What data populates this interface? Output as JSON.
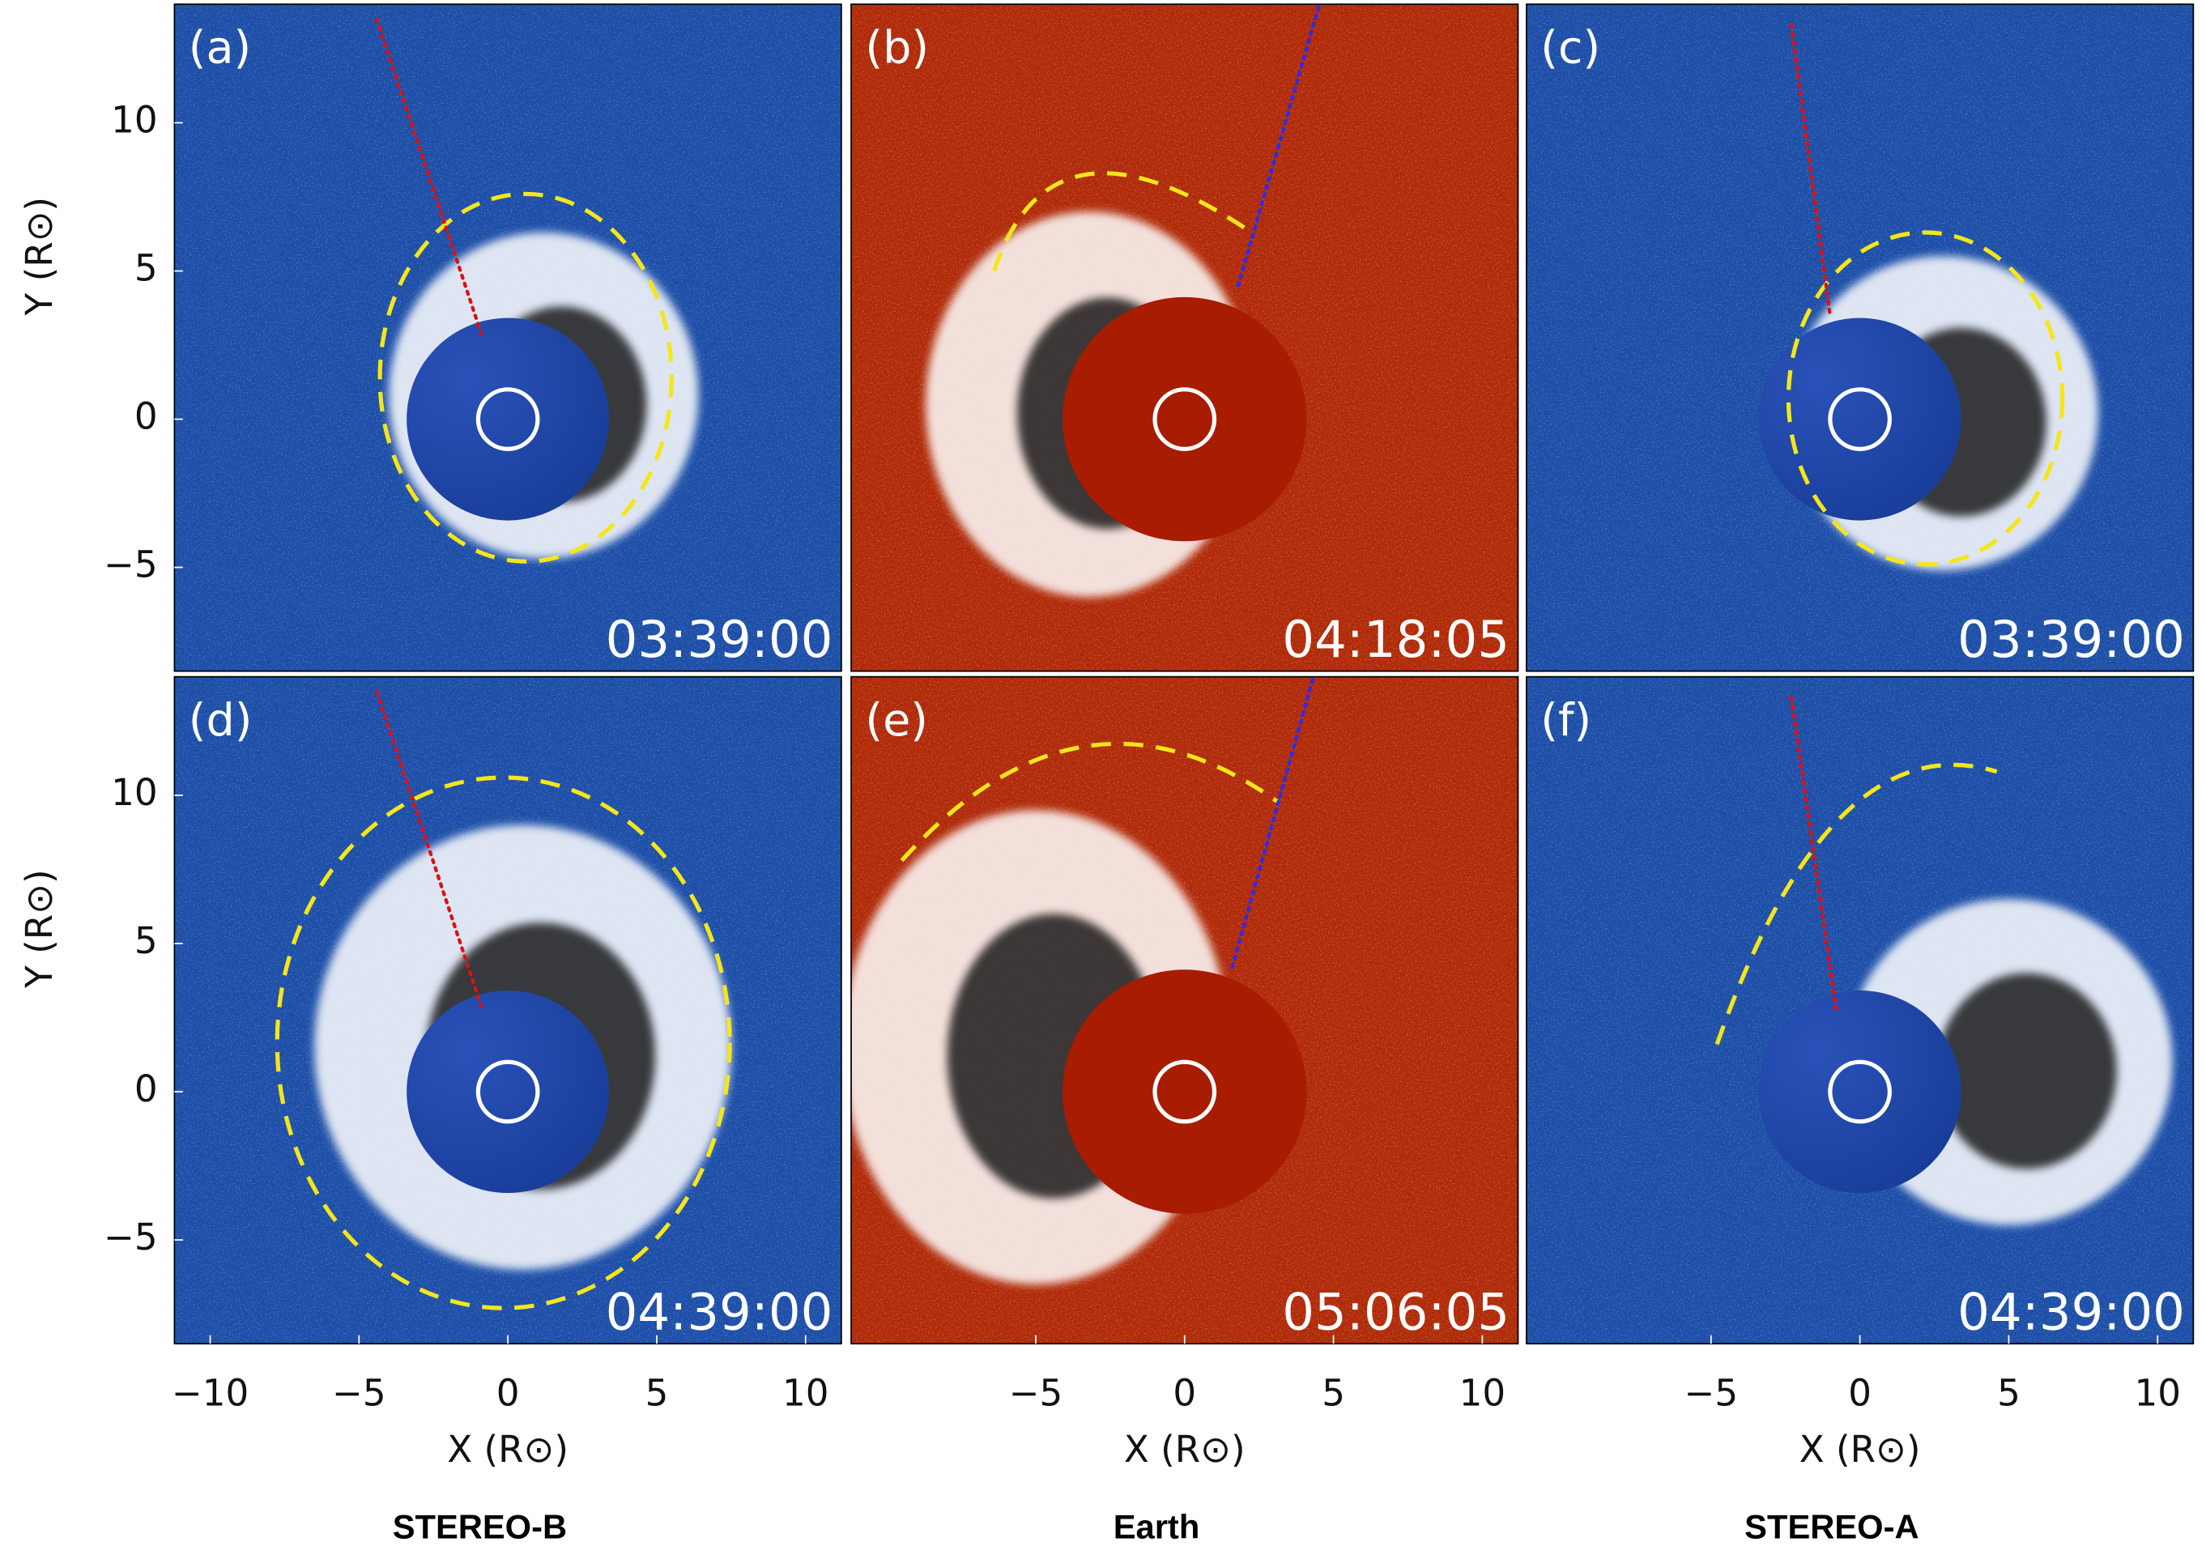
{
  "chart_data": [
    {
      "type": "image",
      "panel_label": "(a)",
      "time": "03:39:00",
      "color": "#1d4fa8",
      "xlim": [
        -11.2,
        11.2
      ],
      "ylim": [
        -8.5,
        14
      ],
      "yticks": [
        {
          "value": -5,
          "label": "−5"
        },
        0,
        5,
        10
      ],
      "ylabel": "Y (R⊙)"
    },
    {
      "type": "image",
      "panel_label": "(b)",
      "time": "04:18:05",
      "color": "#b02a08",
      "xlim": [
        -11.2,
        11.2
      ],
      "ylim": [
        -8.5,
        14
      ]
    },
    {
      "type": "image",
      "panel_label": "(c)",
      "time": "03:39:00",
      "color": "#1d4fa8",
      "xlim": [
        -11.2,
        11.2
      ],
      "ylim": [
        -8.5,
        14
      ]
    },
    {
      "type": "image",
      "panel_label": "(d)",
      "time": "04:39:00",
      "color": "#1d4fa8",
      "xlim": [
        -11.2,
        11.2
      ],
      "ylim": [
        -8.5,
        14
      ],
      "yticks": [
        {
          "value": -5,
          "label": "−5"
        },
        0,
        5,
        10
      ],
      "ylabel": "Y (R⊙)",
      "xticks": [
        {
          "value": -10,
          "label": "−10"
        },
        {
          "value": -5,
          "label": "−5"
        },
        0,
        5,
        10
      ],
      "xlabel": "X (R⊙)"
    },
    {
      "type": "image",
      "panel_label": "(e)",
      "time": "05:06:05",
      "color": "#b02a08",
      "xlim": [
        -11.2,
        11.2
      ],
      "ylim": [
        -8.5,
        14
      ],
      "xticks": [
        {
          "value": -5,
          "label": "−5"
        },
        0,
        5,
        10
      ],
      "xlabel": "X (R⊙)"
    },
    {
      "type": "image",
      "panel_label": "(f)",
      "time": "04:39:00",
      "color": "#1d4fa8",
      "xlim": [
        -11.2,
        11.2
      ],
      "ylim": [
        -8.5,
        14
      ],
      "xticks": [
        {
          "value": -5,
          "label": "−5"
        },
        0,
        5,
        10
      ],
      "xlabel": "X (R⊙)"
    }
  ],
  "column_titles": [
    "STEREO-B",
    "Earth",
    "STEREO-A"
  ]
}
